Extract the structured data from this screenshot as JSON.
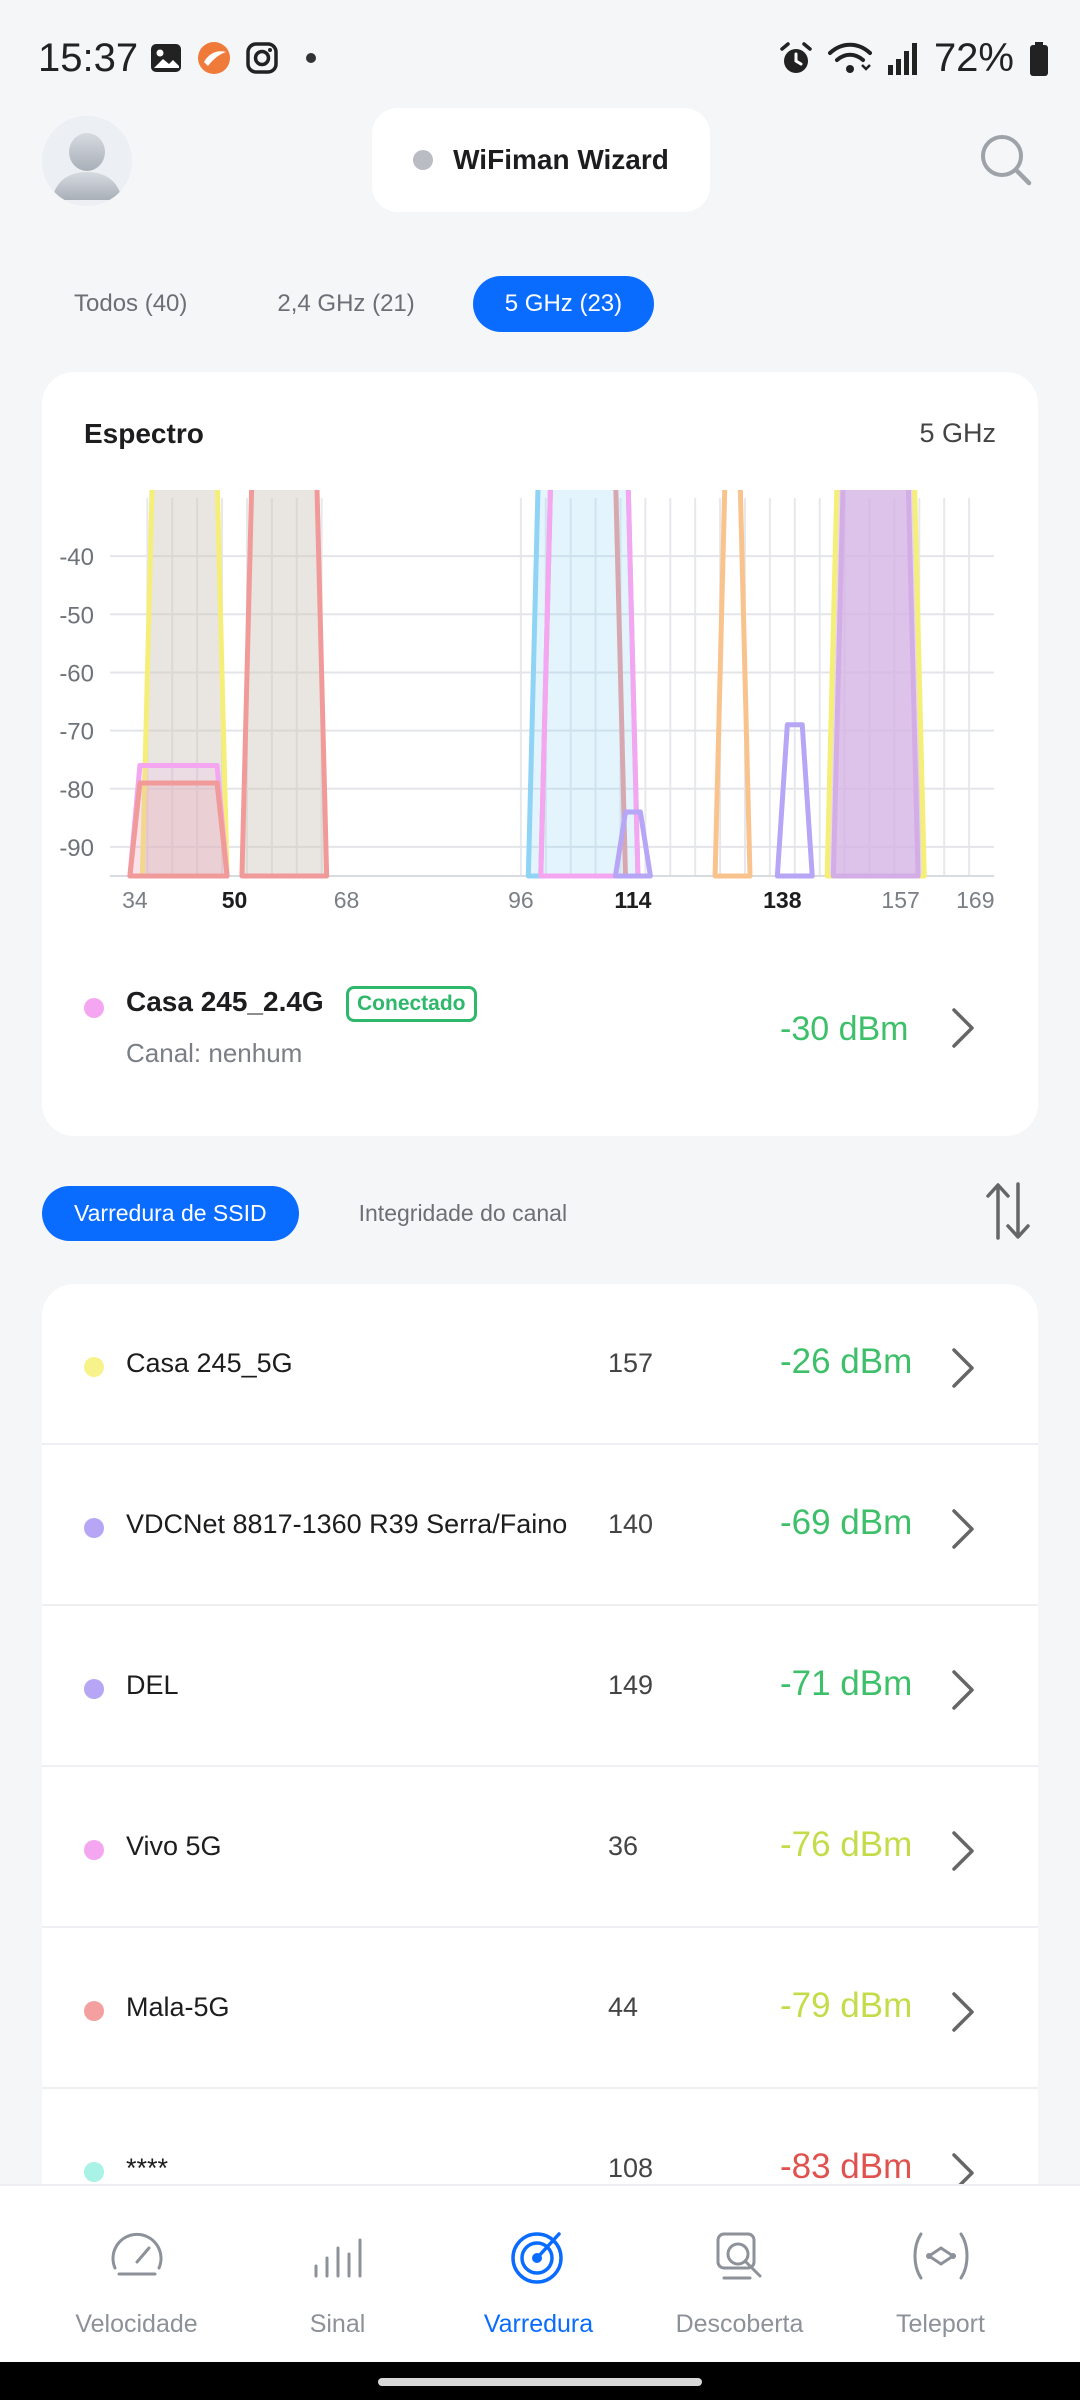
{
  "status_bar": {
    "time": "15:37",
    "battery": "72%"
  },
  "header": {
    "wizard_label": "WiFiman Wizard"
  },
  "band_tabs": [
    {
      "label": "Todos (40)",
      "active": false
    },
    {
      "label": "2,4 GHz (21)",
      "active": false
    },
    {
      "label": "5 GHz (23)",
      "active": true
    }
  ],
  "spectrum": {
    "title": "Espectro",
    "band": "5 GHz",
    "connected": {
      "ssid": "Casa 245_2.4G",
      "badge": "Conectado",
      "channel": "Canal: nenhum",
      "signal": "-30 dBm",
      "color": "#f4a7f0"
    }
  },
  "chart_data": {
    "type": "area",
    "ylabel": "",
    "xlabel": "",
    "yticks": [
      "-40",
      "-50",
      "-60",
      "-70",
      "-80",
      "-90"
    ],
    "ylim": [
      -95,
      -30
    ],
    "xticks": [
      {
        "label": "34",
        "value": 34,
        "bold": false
      },
      {
        "label": "50",
        "value": 50,
        "bold": true
      },
      {
        "label": "68",
        "value": 68,
        "bold": false
      },
      {
        "label": "96",
        "value": 96,
        "bold": false
      },
      {
        "label": "114",
        "value": 114,
        "bold": true
      },
      {
        "label": "138",
        "value": 138,
        "bold": true
      },
      {
        "label": "157",
        "value": 157,
        "bold": false
      },
      {
        "label": "169",
        "value": 169,
        "bold": false
      }
    ],
    "series": [
      {
        "from": 36,
        "to": 48,
        "value": -26,
        "color": "#f5ef7a",
        "fill": "rgba(206,198,186,0.45)"
      },
      {
        "from": 52,
        "to": 64,
        "value": -26,
        "color": "#f19a9a",
        "fill": "rgba(206,198,186,0.45)"
      },
      {
        "from": 34,
        "to": 48,
        "value": -76,
        "color": "#f4a7f0",
        "fill": "rgba(244,167,240,0.15)"
      },
      {
        "from": 34,
        "to": 48,
        "value": -79,
        "color": "#f19a9a",
        "fill": "rgba(241,154,154,0.18)"
      },
      {
        "from": 100,
        "to": 112,
        "value": -26,
        "color": "#f19a9a",
        "fill": "none"
      },
      {
        "from": 98,
        "to": 114,
        "value": -26,
        "color": "#8fd3f5",
        "fill": "rgba(143,211,245,0.25)"
      },
      {
        "from": 100,
        "to": 114,
        "value": -26,
        "color": "#f4a7f0",
        "fill": "none"
      },
      {
        "from": 112,
        "to": 116,
        "value": -84,
        "color": "#b6a6f5",
        "fill": "none"
      },
      {
        "from": 128,
        "to": 132,
        "value": -26,
        "color": "#f9c38e",
        "fill": "none"
      },
      {
        "from": 138,
        "to": 142,
        "value": -69,
        "color": "#b6a6f5",
        "fill": "none"
      },
      {
        "from": 146,
        "to": 160,
        "value": -26,
        "color": "#f5ef7a",
        "fill": "rgba(214,190,230,0.6)"
      },
      {
        "from": 147,
        "to": 159,
        "value": -26,
        "color": "#d3aee6",
        "fill": "rgba(214,176,228,0.55)"
      }
    ]
  },
  "scan_tabs": [
    {
      "label": "Varredura de SSID",
      "active": true
    },
    {
      "label": "Integridade do canal",
      "active": false
    }
  ],
  "networks": [
    {
      "ssid": "Casa 245_5G",
      "channel": "157",
      "signal": "-26 dBm",
      "color": "#f7f38a",
      "signal_color": "#3ec06a"
    },
    {
      "ssid": "VDCNet 8817-1360 R39 Serra/Faino",
      "channel": "140",
      "signal": "-69 dBm",
      "color": "#b6a6f5",
      "signal_color": "#3ec06a"
    },
    {
      "ssid": "DEL",
      "channel": "149",
      "signal": "-71 dBm",
      "color": "#b6a6f5",
      "signal_color": "#3ec06a"
    },
    {
      "ssid": "Vivo 5G",
      "channel": "36",
      "signal": "-76 dBm",
      "color": "#f4a7f0",
      "signal_color": "#c5dc4a"
    },
    {
      "ssid": "Mala-5G",
      "channel": "44",
      "signal": "-79 dBm",
      "color": "#f5a0a0",
      "signal_color": "#c5dc4a"
    },
    {
      "ssid": "****",
      "channel": "108",
      "signal": "-83 dBm",
      "color": "#a8f2e6",
      "signal_color": "#e0524e"
    }
  ],
  "bottom_nav": [
    {
      "label": "Velocidade",
      "icon": "speedometer-icon",
      "active": false
    },
    {
      "label": "Sinal",
      "icon": "signal-bars-icon",
      "active": false
    },
    {
      "label": "Varredura",
      "icon": "radar-icon",
      "active": true
    },
    {
      "label": "Descoberta",
      "icon": "device-search-icon",
      "active": false
    },
    {
      "label": "Teleport",
      "icon": "teleport-icon",
      "active": false
    }
  ]
}
